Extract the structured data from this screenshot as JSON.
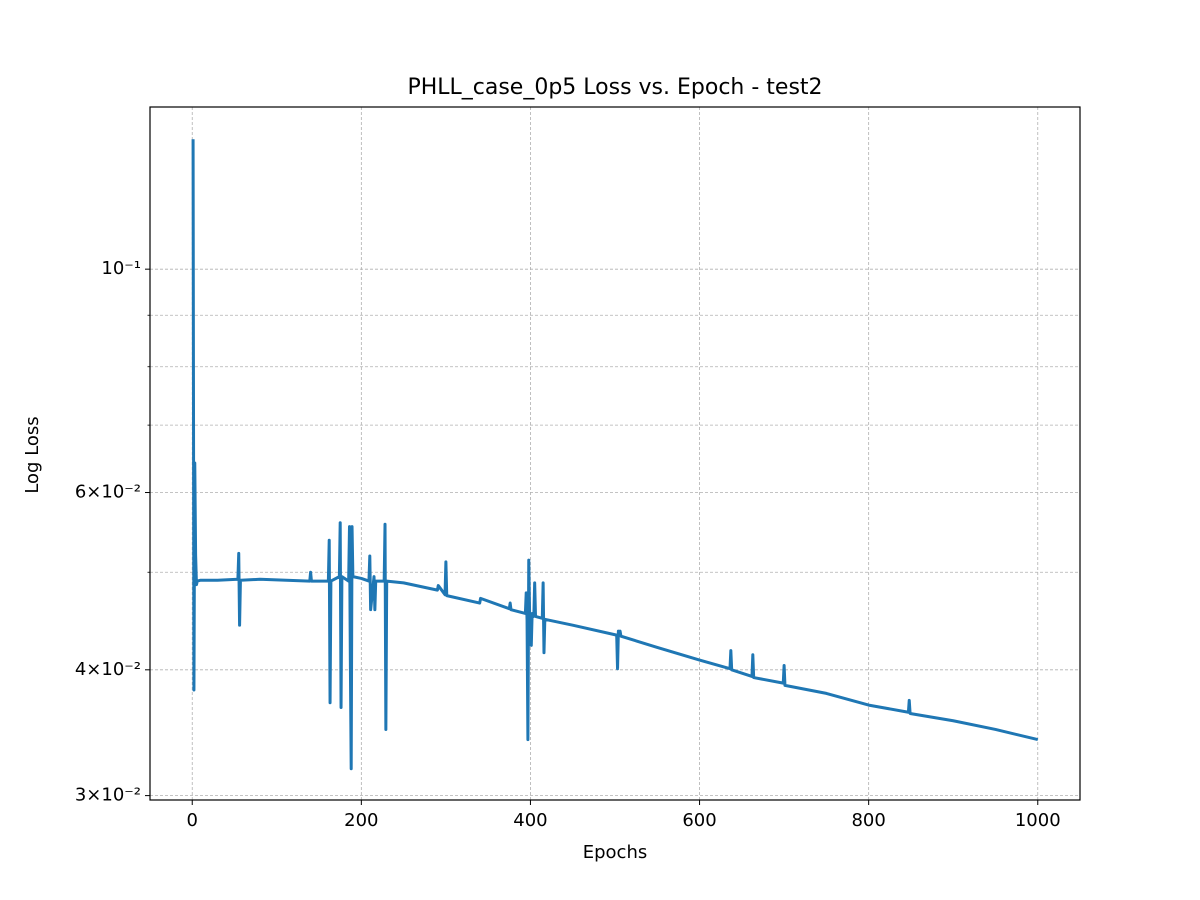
{
  "chart_data": {
    "type": "line",
    "title": "PHLL_case_0p5 Loss vs. Epoch - test2",
    "xlabel": "Epochs",
    "ylabel": "Log Loss",
    "xlim": [
      -49.95,
      1049.95
    ],
    "ylim": [
      0.0297,
      0.1449
    ],
    "yscale": "log",
    "grid": true,
    "xticks": [
      0,
      200,
      400,
      600,
      800,
      1000
    ],
    "yticks": [
      {
        "value": 0.03,
        "label": "3×10⁻²"
      },
      {
        "value": 0.04,
        "label": "4×10⁻²"
      },
      {
        "value": 0.06,
        "label": "6×10⁻²"
      },
      {
        "value": 0.1,
        "label": "10⁻¹"
      }
    ],
    "yminor": [
      0.05,
      0.07,
      0.08,
      0.09
    ],
    "x": [
      1,
      2,
      3,
      4,
      5,
      6,
      10,
      30,
      54,
      55,
      56,
      57,
      80,
      139,
      140,
      141,
      161,
      162,
      163,
      164,
      174,
      175,
      176,
      177,
      185,
      186,
      187,
      188,
      189,
      190,
      200,
      209,
      210,
      211,
      215,
      216,
      217,
      227,
      228,
      229,
      230,
      250,
      290,
      291,
      299,
      300,
      301,
      340,
      341,
      375,
      376,
      377,
      394,
      395,
      396,
      397,
      398,
      399,
      400,
      401,
      402,
      404,
      405,
      406,
      414,
      415,
      416,
      417,
      450,
      502,
      503,
      504,
      505,
      506,
      507,
      550,
      600,
      636,
      637,
      638,
      662,
      663,
      664,
      699,
      700,
      701,
      750,
      800,
      847,
      848,
      849,
      900,
      950,
      1000
    ],
    "series": [
      {
        "color": "#1f77b4",
        "values": [
          0.1346,
          0.0382,
          0.0642,
          0.052,
          0.0486,
          0.049,
          0.0491,
          0.0491,
          0.0492,
          0.0522,
          0.0443,
          0.0491,
          0.0492,
          0.049,
          0.05,
          0.049,
          0.049,
          0.0538,
          0.0371,
          0.049,
          0.0495,
          0.056,
          0.0367,
          0.0495,
          0.049,
          0.0555,
          0.0409,
          0.0319,
          0.0555,
          0.0495,
          0.0493,
          0.049,
          0.0519,
          0.0459,
          0.0495,
          0.0459,
          0.049,
          0.049,
          0.0558,
          0.0349,
          0.049,
          0.0488,
          0.048,
          0.0485,
          0.0475,
          0.0512,
          0.0474,
          0.0466,
          0.0471,
          0.046,
          0.0466,
          0.0459,
          0.0455,
          0.0477,
          0.0448,
          0.0341,
          0.0514,
          0.0455,
          0.0453,
          0.0423,
          0.0455,
          0.0452,
          0.0488,
          0.0452,
          0.045,
          0.0488,
          0.0416,
          0.0449,
          0.0443,
          0.0433,
          0.0401,
          0.0437,
          0.0433,
          0.0437,
          0.0432,
          0.0421,
          0.0409,
          0.0401,
          0.0418,
          0.04,
          0.0394,
          0.0414,
          0.0393,
          0.0388,
          0.0404,
          0.0386,
          0.0379,
          0.0369,
          0.0363,
          0.0373,
          0.0362,
          0.0356,
          0.0349,
          0.0341
        ]
      }
    ]
  }
}
